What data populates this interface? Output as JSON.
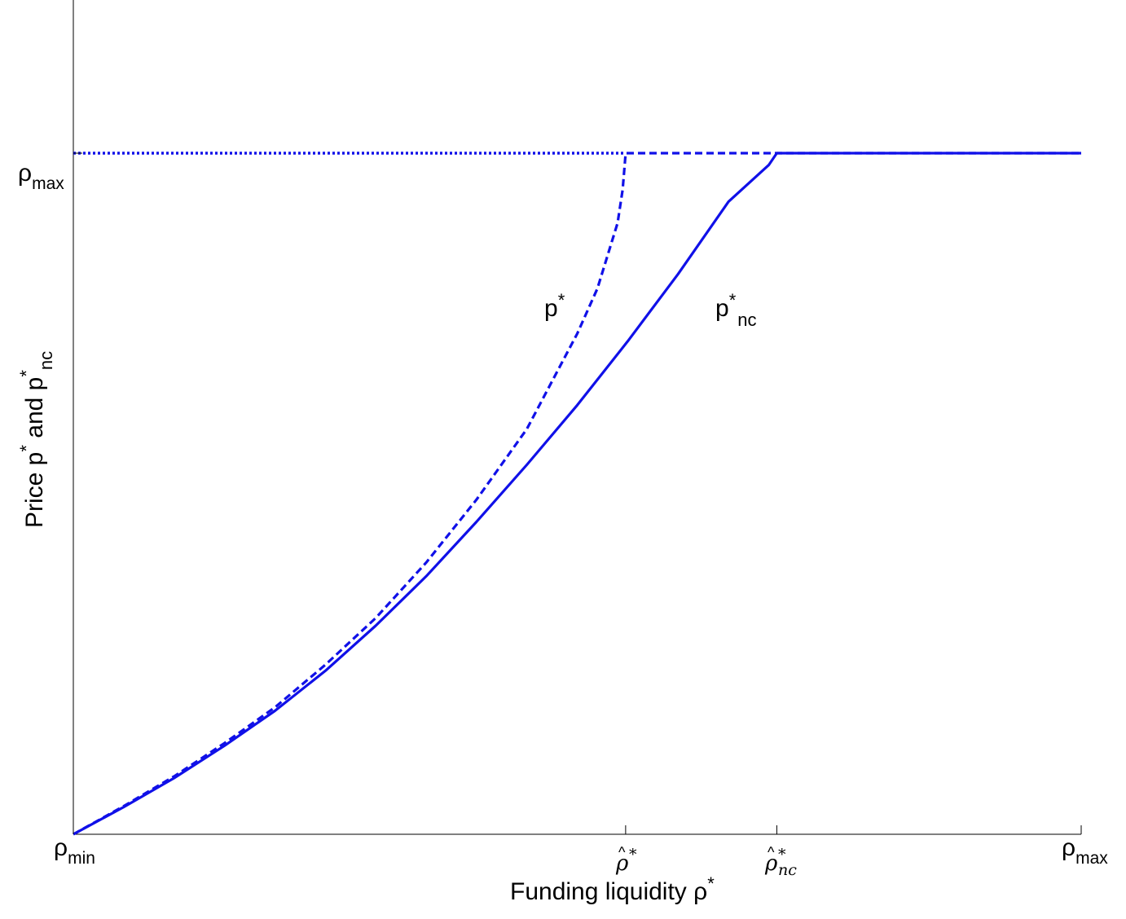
{
  "chart_data": {
    "type": "line",
    "title": "",
    "xlabel": {
      "text": "Funding liquidity ρ",
      "sup": "*"
    },
    "ylabel": {
      "base": "Price p",
      "sup1": "*",
      "mid": " and p",
      "sup2": "*",
      "sub2": "nc"
    },
    "xlim": [
      0,
      1
    ],
    "ylim": [
      0,
      1
    ],
    "grid": false,
    "x_ticks": [
      {
        "main": "ρ",
        "sub": "min",
        "x": 0
      },
      {
        "hat": "ρ",
        "sup": "*",
        "sub": "",
        "x": 0.548
      },
      {
        "hat": "ρ",
        "sup": "*",
        "sub": "nc",
        "x": 0.698
      },
      {
        "main": "ρ",
        "sub": "max",
        "x": 1
      }
    ],
    "y_ticks": [
      {
        "main": "ρ",
        "sub": "max",
        "y": 0.8
      }
    ],
    "series": [
      {
        "name": "p*",
        "label": {
          "base": "p",
          "sup": "*",
          "sub": ""
        },
        "style": "dashed",
        "color": "#1010e8",
        "x": [
          0,
          0.05,
          0.1,
          0.15,
          0.2,
          0.25,
          0.3,
          0.35,
          0.4,
          0.45,
          0.5,
          0.52,
          0.54,
          0.545,
          0.548,
          0.6,
          0.7,
          0.8,
          0.9,
          1.0
        ],
        "y": [
          0,
          0.033,
          0.068,
          0.107,
          0.149,
          0.199,
          0.254,
          0.319,
          0.393,
          0.476,
          0.588,
          0.641,
          0.718,
          0.757,
          0.8,
          0.8,
          0.8,
          0.8,
          0.8,
          0.8
        ]
      },
      {
        "name": "p*_nc",
        "label": {
          "base": "p",
          "sup": "*",
          "sub": "nc"
        },
        "style": "solid",
        "color": "#1010e8",
        "x": [
          0,
          0.05,
          0.1,
          0.15,
          0.2,
          0.25,
          0.3,
          0.35,
          0.4,
          0.45,
          0.5,
          0.55,
          0.6,
          0.65,
          0.69,
          0.698,
          0.75,
          0.8,
          0.9,
          1.0
        ],
        "y": [
          0,
          0.032,
          0.066,
          0.104,
          0.145,
          0.192,
          0.245,
          0.303,
          0.367,
          0.434,
          0.504,
          0.579,
          0.658,
          0.743,
          0.786,
          0.8,
          0.8,
          0.8,
          0.8,
          0.8
        ]
      },
      {
        "name": "p = ρ_max",
        "label": null,
        "style": "dotted",
        "color": "#1010e8",
        "x": [
          0,
          0.548
        ],
        "y": [
          0.8,
          0.8
        ]
      }
    ]
  },
  "colors": {
    "line": "#1010e8",
    "axis": "#000000"
  }
}
